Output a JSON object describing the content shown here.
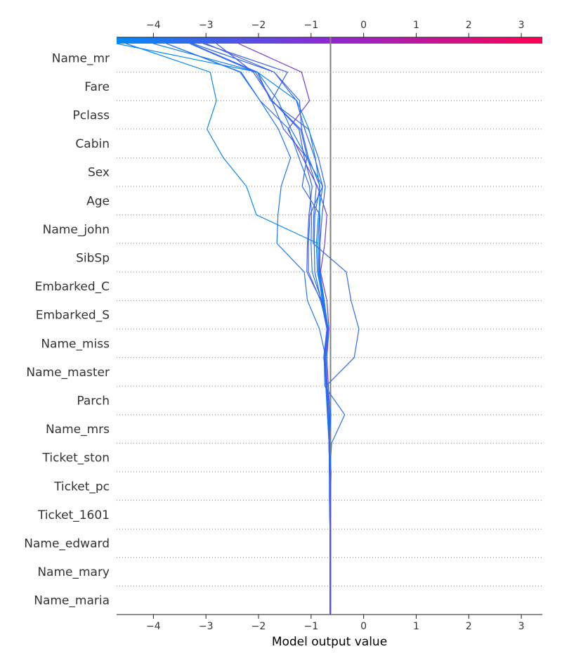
{
  "chart_data": {
    "type": "line",
    "chart_kind": "decision-plot",
    "xlabel": "Model output value",
    "xlim": [
      -4.7,
      3.4
    ],
    "xticks": [
      -4,
      -3,
      -2,
      -1,
      0,
      1,
      2,
      3
    ],
    "xtick_labels": [
      "−4",
      "−3",
      "−2",
      "−1",
      "0",
      "1",
      "2",
      "3"
    ],
    "base_value": -0.63,
    "colorbar": {
      "from": "#008bfb",
      "mid": "#8e28d4",
      "to": "#ff0051",
      "range": [
        -4.7,
        3.4
      ]
    },
    "features": [
      "Name_mr",
      "Fare",
      "Pclass",
      "Cabin",
      "Sex",
      "Age",
      "Name_john",
      "SibSp",
      "Embarked_C",
      "Embarked_S",
      "Name_miss",
      "Name_master",
      "Parch",
      "Name_mrs",
      "Ticket_ston",
      "Ticket_pc",
      "Ticket_1601",
      "Name_edward",
      "Name_mary",
      "Name_maria"
    ],
    "series": [
      {
        "values": [
          -2.38,
          -1.18,
          -1.03,
          -1.44,
          -1.16,
          -0.88,
          -0.7,
          -0.74,
          -0.82,
          -0.7,
          -0.66,
          -0.7,
          -0.67,
          -0.64,
          -0.66,
          -0.62,
          -0.63,
          -0.63,
          -0.63,
          -0.63,
          -0.63
        ]
      },
      {
        "values": [
          -3.05,
          -1.45,
          -1.75,
          -1.52,
          -1.08,
          -1.17,
          -0.83,
          -0.84,
          -0.84,
          -0.78,
          -0.67,
          -0.72,
          -0.7,
          -0.66,
          -0.66,
          -0.65,
          -0.65,
          -0.64,
          -0.64,
          -0.64,
          -0.64
        ]
      },
      {
        "values": [
          -4.52,
          -2.92,
          -2.8,
          -2.98,
          -2.67,
          -2.23,
          -2.04,
          -0.87,
          -0.86,
          -0.79,
          -0.68,
          -0.74,
          -0.72,
          -0.69,
          -0.66,
          -0.65,
          -0.65,
          -0.64,
          -0.64,
          -0.64,
          -0.64
        ]
      },
      {
        "values": [
          -3.75,
          -2.35,
          -1.97,
          -1.62,
          -1.39,
          -1.57,
          -1.63,
          -1.65,
          -1.13,
          -1.07,
          -0.84,
          -0.72,
          -0.69,
          -0.66,
          -0.65,
          -0.64,
          -0.64,
          -0.64,
          -0.64,
          -0.64,
          -0.64
        ]
      },
      {
        "values": [
          -3.28,
          -2.02,
          -1.77,
          -1.05,
          -0.86,
          -0.73,
          -0.79,
          -0.83,
          -0.83,
          -0.75,
          -0.68,
          -0.73,
          -0.71,
          -0.68,
          -0.66,
          -0.65,
          -0.65,
          -0.64,
          -0.64,
          -0.64,
          -0.64
        ]
      },
      {
        "values": [
          -4.7,
          -2.02,
          -1.27,
          -1.04,
          -0.92,
          -0.84,
          -0.84,
          -0.87,
          -0.85,
          -0.76,
          -0.67,
          -0.72,
          -0.71,
          -0.67,
          -0.65,
          -0.65,
          -0.64,
          -0.64,
          -0.64,
          -0.64,
          -0.64
        ]
      },
      {
        "values": [
          -4.0,
          -2.02,
          -1.63,
          -1.38,
          -1.08,
          -0.78,
          -0.86,
          -0.9,
          -0.88,
          -0.77,
          -0.7,
          -0.76,
          -0.7,
          -0.62,
          -0.66,
          -0.65,
          -0.64,
          -0.64,
          -0.64,
          -0.64,
          -0.64
        ]
      },
      {
        "values": [
          -3.75,
          -2.33,
          -1.97,
          -1.42,
          -1.23,
          -1.03,
          -0.99,
          -1.0,
          -0.98,
          -0.8,
          -0.69,
          -0.75,
          -0.74,
          -0.36,
          -0.61,
          -0.64,
          -0.64,
          -0.64,
          -0.64,
          -0.64,
          -0.64
        ]
      },
      {
        "values": [
          -3.25,
          -1.7,
          -1.22,
          -1.18,
          -1.05,
          -0.83,
          -0.93,
          -0.94,
          -0.93,
          -0.81,
          -0.68,
          -0.73,
          -0.7,
          -0.67,
          -0.65,
          -0.65,
          -0.64,
          -0.64,
          -0.64,
          -0.64,
          -0.64
        ]
      },
      {
        "values": [
          -3.0,
          -1.7,
          -1.28,
          -1.12,
          -0.93,
          -0.78,
          -1.02,
          -1.05,
          -1.05,
          -0.82,
          -0.68,
          -0.74,
          -0.71,
          -0.67,
          -0.65,
          -0.65,
          -0.64,
          -0.64,
          -0.64,
          -0.64,
          -0.64
        ]
      },
      {
        "values": [
          -2.8,
          -2.1,
          -1.74,
          -1.23,
          -1.13,
          -0.98,
          -1.04,
          -1.07,
          -1.08,
          -0.81,
          -0.7,
          -0.75,
          -0.71,
          -0.67,
          -0.65,
          -0.65,
          -0.64,
          -0.64,
          -0.64,
          -0.64,
          -0.64
        ]
      },
      {
        "values": [
          -3.31,
          -2.06,
          -1.74,
          -1.2,
          -1.07,
          -0.9,
          -0.95,
          -0.96,
          -0.33,
          -0.24,
          -0.09,
          -0.18,
          -0.72,
          -0.68,
          -0.66,
          -0.65,
          -0.64,
          -0.64,
          -0.64,
          -0.64,
          -0.64
        ]
      }
    ]
  }
}
